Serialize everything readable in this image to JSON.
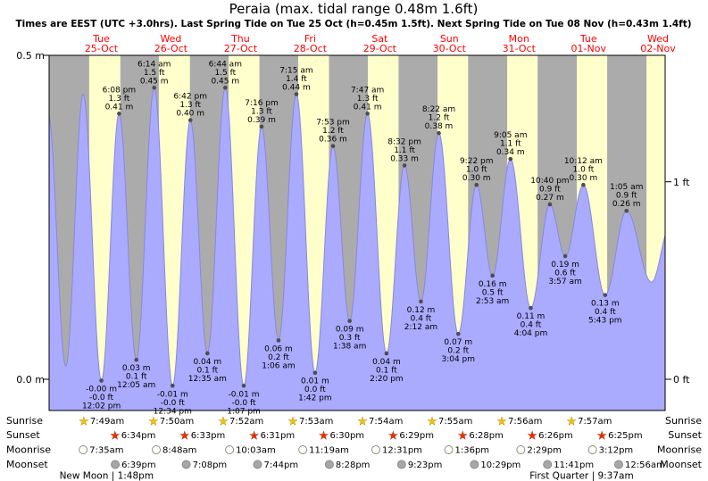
{
  "title": "Peraia (max. tidal range 0.48m 1.6ft)",
  "subtitle": "Times are EEST (UTC +3.0hrs). Last Spring Tide on Tue 25 Oct (h=0.45m 1.5ft). Next Spring Tide on Tue 08 Nov (h=0.43m 1.4ft)",
  "axes": {
    "left": [
      {
        "label": "0.5 m",
        "value_m": 0.5
      },
      {
        "label": "0.0 m",
        "value_m": 0.0
      }
    ],
    "right": [
      {
        "label": "1 ft",
        "value_m": 0.3048
      },
      {
        "label": "0 ft",
        "value_m": 0.0
      }
    ]
  },
  "days": [
    {
      "dow": "Tue",
      "date": "25-Oct"
    },
    {
      "dow": "Wed",
      "date": "26-Oct"
    },
    {
      "dow": "Thu",
      "date": "27-Oct"
    },
    {
      "dow": "Fri",
      "date": "28-Oct"
    },
    {
      "dow": "Sat",
      "date": "29-Oct"
    },
    {
      "dow": "Sun",
      "date": "30-Oct"
    },
    {
      "dow": "Mon",
      "date": "31-Oct"
    },
    {
      "dow": "Tue",
      "date": "01-Nov"
    },
    {
      "dow": "Wed",
      "date": "02-Nov"
    }
  ],
  "chart_data": {
    "type": "area",
    "title": "Peraia (max. tidal range 0.48m 1.6ft)",
    "ylabel_left_m": [
      0.5,
      0.0
    ],
    "ylabel_right_ft": [
      1,
      0
    ],
    "ylim_m": [
      -0.045,
      0.5
    ],
    "domain_days": [
      -0.25,
      8.6
    ],
    "day0": "Tue 25-Oct",
    "colors": {
      "day_band": "#ffffcc",
      "night_band": "#ababab",
      "area": "#aaaaff",
      "area_edge": "#8888dd",
      "day_label": "#ff0000",
      "dot": "#4d4d4d"
    },
    "tide_events": [
      {
        "d": -0.2639,
        "h": 0.41,
        "type": "high",
        "labeled": false
      },
      {
        "d": -0.0104,
        "h": 0.02,
        "type": "low",
        "labeled": false
      },
      {
        "d": 0.2396,
        "h": 0.44,
        "type": "high",
        "labeled": false
      },
      {
        "d": 0.5014,
        "h": -0.002,
        "type": "low",
        "labeled": true,
        "lines": [
          "-0.00 m",
          "-0.0 ft",
          "12:02 pm"
        ]
      },
      {
        "d": 0.7556,
        "h": 0.41,
        "type": "high",
        "labeled": true,
        "lines": [
          "6:08 pm",
          "1.3 ft",
          "0.41 m"
        ]
      },
      {
        "d": 1.0035,
        "h": 0.03,
        "type": "low",
        "labeled": true,
        "lines": [
          "0.03 m",
          "0.1 ft",
          "12:05 am"
        ]
      },
      {
        "d": 1.2597,
        "h": 0.45,
        "type": "high",
        "labeled": true,
        "lines": [
          "6:14 am",
          "1.5 ft",
          "0.45 m"
        ]
      },
      {
        "d": 1.5236,
        "h": -0.01,
        "type": "low",
        "labeled": true,
        "lines": [
          "-0.01 m",
          "-0.0 ft",
          "12:34 pm"
        ]
      },
      {
        "d": 1.7792,
        "h": 0.4,
        "type": "high",
        "labeled": true,
        "lines": [
          "6:42 pm",
          "1.3 ft",
          "0.40 m"
        ]
      },
      {
        "d": 2.0243,
        "h": 0.04,
        "type": "low",
        "labeled": true,
        "lines": [
          "0.04 m",
          "0.1 ft",
          "12:35 am"
        ]
      },
      {
        "d": 2.2806,
        "h": 0.45,
        "type": "high",
        "labeled": true,
        "lines": [
          "6:44 am",
          "1.5 ft",
          "0.45 m"
        ]
      },
      {
        "d": 2.5465,
        "h": -0.01,
        "type": "low",
        "labeled": true,
        "lines": [
          "-0.01 m",
          "-0.0 ft",
          "1:07 pm"
        ]
      },
      {
        "d": 2.8028,
        "h": 0.39,
        "type": "high",
        "labeled": true,
        "lines": [
          "7:16 pm",
          "1.3 ft",
          "0.39 m"
        ]
      },
      {
        "d": 3.0458,
        "h": 0.06,
        "type": "low",
        "labeled": true,
        "lines": [
          "0.06 m",
          "0.2 ft",
          "1:06 am"
        ]
      },
      {
        "d": 3.3021,
        "h": 0.44,
        "type": "high",
        "labeled": true,
        "lines": [
          "7:15 am",
          "1.4 ft",
          "0.44 m"
        ]
      },
      {
        "d": 3.5708,
        "h": 0.01,
        "type": "low",
        "labeled": true,
        "lines": [
          "0.01 m",
          "0.0 ft",
          "1:42 pm"
        ]
      },
      {
        "d": 3.8285,
        "h": 0.36,
        "type": "high",
        "labeled": true,
        "lines": [
          "7:53 pm",
          "1.2 ft",
          "0.36 m"
        ]
      },
      {
        "d": 4.0681,
        "h": 0.09,
        "type": "low",
        "labeled": true,
        "lines": [
          "0.09 m",
          "0.3 ft",
          "1:38 am"
        ]
      },
      {
        "d": 4.3243,
        "h": 0.41,
        "type": "high",
        "labeled": true,
        "lines": [
          "7:47 am",
          "1.3 ft",
          "0.41 m"
        ]
      },
      {
        "d": 4.5972,
        "h": 0.04,
        "type": "low",
        "labeled": true,
        "lines": [
          "0.04 m",
          "0.1 ft",
          "2:20 pm"
        ]
      },
      {
        "d": 4.8556,
        "h": 0.33,
        "type": "high",
        "labeled": true,
        "lines": [
          "8:32 pm",
          "1.1 ft",
          "0.33 m"
        ]
      },
      {
        "d": 5.0917,
        "h": 0.12,
        "type": "low",
        "labeled": true,
        "lines": [
          "0.12 m",
          "0.4 ft",
          "2:12 am"
        ]
      },
      {
        "d": 5.3486,
        "h": 0.38,
        "type": "high",
        "labeled": true,
        "lines": [
          "8:22 am",
          "1.2 ft",
          "0.38 m"
        ]
      },
      {
        "d": 5.6278,
        "h": 0.07,
        "type": "low",
        "labeled": true,
        "lines": [
          "0.07 m",
          "0.2 ft",
          "3:04 pm"
        ]
      },
      {
        "d": 5.8903,
        "h": 0.3,
        "type": "high",
        "labeled": true,
        "lines": [
          "9:22 pm",
          "1.0 ft",
          "0.30 m"
        ]
      },
      {
        "d": 6.1201,
        "h": 0.16,
        "type": "low",
        "labeled": true,
        "lines": [
          "0.16 m",
          "0.5 ft",
          "2:53 am"
        ]
      },
      {
        "d": 6.3785,
        "h": 0.34,
        "type": "high",
        "labeled": true,
        "lines": [
          "9:05 am",
          "1.1 ft",
          "0.34 m"
        ]
      },
      {
        "d": 6.6694,
        "h": 0.11,
        "type": "low",
        "labeled": true,
        "lines": [
          "0.11 m",
          "0.4 ft",
          "4:04 pm"
        ]
      },
      {
        "d": 6.9444,
        "h": 0.27,
        "type": "high",
        "labeled": true,
        "lines": [
          "10:40 pm",
          "0.9 ft",
          "0.27 m"
        ]
      },
      {
        "d": 7.1646,
        "h": 0.19,
        "type": "low",
        "labeled": true,
        "lines": [
          "0.19 m",
          "0.6 ft",
          "3:57 am"
        ]
      },
      {
        "d": 7.425,
        "h": 0.3,
        "type": "high",
        "labeled": true,
        "lines": [
          "10:12 am",
          "1.0 ft",
          "0.30 m"
        ]
      },
      {
        "d": 7.7382,
        "h": 0.13,
        "type": "low",
        "labeled": true,
        "lines": [
          "0.13 m",
          "0.4 ft",
          "5:43 pm"
        ]
      },
      {
        "d": 8.0451,
        "h": 0.26,
        "type": "high",
        "labeled": true,
        "lines": [
          "1:05 am",
          "0.9 ft",
          "0.26 m"
        ]
      },
      {
        "d": 8.4028,
        "h": 0.15,
        "type": "low",
        "labeled": false
      },
      {
        "d": 8.6806,
        "h": 0.24,
        "type": "high",
        "labeled": false
      }
    ]
  },
  "astro": {
    "rows": [
      {
        "key": "sunrise",
        "label": "Sunrise",
        "icon": "star-gold-icon",
        "events": [
          {
            "day": 0,
            "hour": 7.817,
            "time": "7:49am"
          },
          {
            "day": 1,
            "hour": 7.833,
            "time": "7:50am"
          },
          {
            "day": 2,
            "hour": 7.867,
            "time": "7:52am"
          },
          {
            "day": 3,
            "hour": 7.883,
            "time": "7:53am"
          },
          {
            "day": 4,
            "hour": 7.9,
            "time": "7:54am"
          },
          {
            "day": 5,
            "hour": 7.917,
            "time": "7:55am"
          },
          {
            "day": 6,
            "hour": 7.933,
            "time": "7:56am"
          },
          {
            "day": 7,
            "hour": 7.95,
            "time": "7:57am"
          }
        ]
      },
      {
        "key": "sunset",
        "label": "Sunset",
        "icon": "star-red-icon",
        "events": [
          {
            "day": 0,
            "hour": 18.567,
            "time": "6:34pm"
          },
          {
            "day": 1,
            "hour": 18.55,
            "time": "6:33pm"
          },
          {
            "day": 2,
            "hour": 18.517,
            "time": "6:31pm"
          },
          {
            "day": 3,
            "hour": 18.5,
            "time": "6:30pm"
          },
          {
            "day": 4,
            "hour": 18.483,
            "time": "6:29pm"
          },
          {
            "day": 5,
            "hour": 18.467,
            "time": "6:28pm"
          },
          {
            "day": 6,
            "hour": 18.433,
            "time": "6:26pm"
          },
          {
            "day": 7,
            "hour": 18.417,
            "time": "6:25pm"
          }
        ]
      },
      {
        "key": "moonrise",
        "label": "Moonrise",
        "icon": "moon-light-icon",
        "events": [
          {
            "day": 0,
            "hour": 7.583,
            "time": "7:35am"
          },
          {
            "day": 1,
            "hour": 8.8,
            "time": "8:48am"
          },
          {
            "day": 2,
            "hour": 10.05,
            "time": "10:03am"
          },
          {
            "day": 3,
            "hour": 11.317,
            "time": "11:19am"
          },
          {
            "day": 4,
            "hour": 12.517,
            "time": "12:31pm"
          },
          {
            "day": 5,
            "hour": 13.6,
            "time": "1:36pm"
          },
          {
            "day": 6,
            "hour": 14.483,
            "time": "2:29pm"
          },
          {
            "day": 7,
            "hour": 15.2,
            "time": "3:12pm"
          }
        ]
      },
      {
        "key": "moonset",
        "label": "Moonset",
        "icon": "moon-gray-icon",
        "events": [
          {
            "day": 0,
            "hour": 18.65,
            "time": "6:39pm"
          },
          {
            "day": 1,
            "hour": 19.133,
            "time": "7:08pm"
          },
          {
            "day": 2,
            "hour": 19.733,
            "time": "7:44pm"
          },
          {
            "day": 3,
            "hour": 20.467,
            "time": "8:28pm"
          },
          {
            "day": 4,
            "hour": 21.383,
            "time": "9:23pm"
          },
          {
            "day": 5,
            "hour": 22.483,
            "time": "10:29pm"
          },
          {
            "day": 6,
            "hour": 23.683,
            "time": "11:41pm"
          },
          {
            "day": 8,
            "hour": 0.933,
            "time": "12:56am"
          }
        ]
      }
    ],
    "phases": [
      {
        "label": "New Moon | 1:48pm",
        "day": 0,
        "hour": 13.8
      },
      {
        "label": "First Quarter | 9:37am",
        "day": 7,
        "hour": 9.617
      }
    ]
  }
}
